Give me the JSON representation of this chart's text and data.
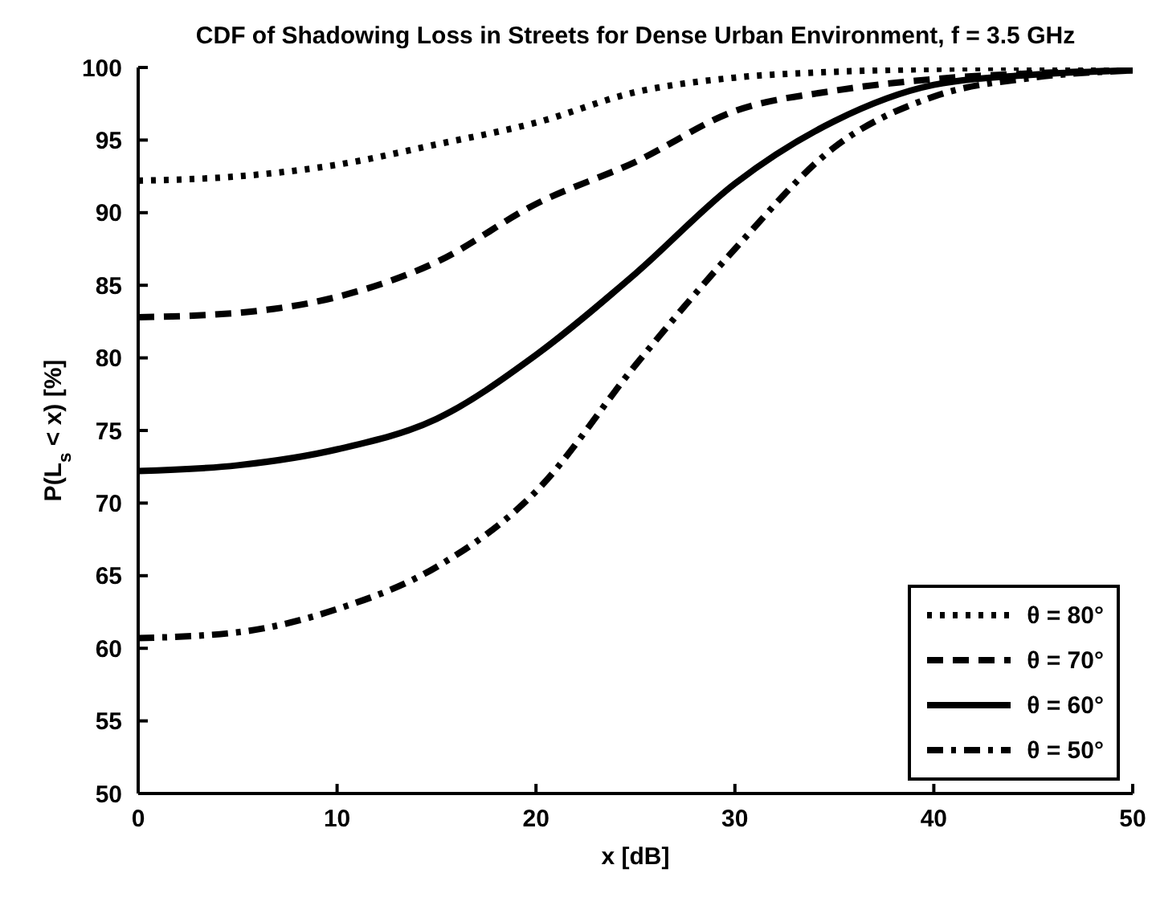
{
  "chart_data": {
    "type": "line",
    "title": "CDF of Shadowing Loss in Streets for Dense Urban Environment, f = 3.5 GHz",
    "xlabel": "x [dB]",
    "ylabel": "P(L$_{s}$ < x) [%]",
    "x": [
      0,
      5,
      10,
      15,
      20,
      25,
      30,
      35,
      40,
      45,
      50
    ],
    "series": [
      {
        "name": "θ = 80°",
        "color": "#000000",
        "line_style": "dotted",
        "values": [
          92.2,
          92.5,
          93.3,
          94.7,
          96.2,
          98.3,
          99.3,
          99.7,
          99.9,
          100,
          100
        ]
      },
      {
        "name": "θ = 70°",
        "color": "#000000",
        "line_style": "dashed",
        "values": [
          82.8,
          83.1,
          84.2,
          86.6,
          90.6,
          93.5,
          97.0,
          98.4,
          99.2,
          99.6,
          99.8
        ]
      },
      {
        "name": "θ = 60°",
        "color": "#000000",
        "line_style": "solid",
        "values": [
          72.2,
          72.6,
          73.7,
          75.8,
          80.2,
          85.8,
          92.0,
          96.3,
          98.8,
          99.5,
          99.8
        ]
      },
      {
        "name": "θ = 50°",
        "color": "#000000",
        "line_style": "dashdot",
        "values": [
          60.7,
          61.1,
          62.7,
          65.6,
          70.8,
          79.5,
          87.5,
          94.5,
          98.0,
          99.3,
          99.8
        ]
      }
    ],
    "xlim": [
      0,
      50
    ],
    "xticks": [
      0,
      10,
      20,
      30,
      40,
      50
    ],
    "ylim": [
      50,
      100
    ],
    "yticks": [
      50,
      55,
      60,
      65,
      70,
      75,
      80,
      85,
      90,
      95,
      100
    ],
    "grid": false,
    "legend": "bottom right",
    "marker": "none"
  }
}
